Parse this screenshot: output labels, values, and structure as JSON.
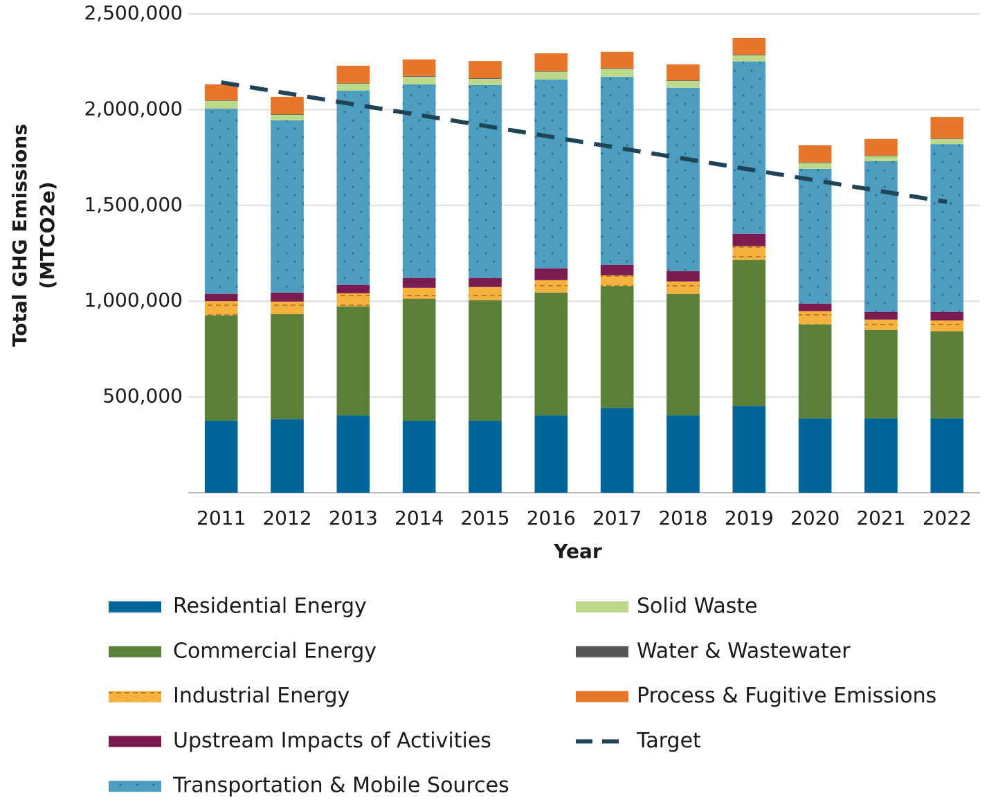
{
  "chart_data": {
    "type": "bar",
    "stacked": true,
    "y_label": [
      "Total GHG Emissions",
      "(MTCO2e)"
    ],
    "x_label": "Year",
    "categories": [
      "2011",
      "2012",
      "2013",
      "2014",
      "2015",
      "2016",
      "2017",
      "2018",
      "2019",
      "2020",
      "2021",
      "2022"
    ],
    "ylim": [
      0,
      2500000
    ],
    "yticks": [
      {
        "value": 500000,
        "label": "500,000"
      },
      {
        "value": 1000000,
        "label": "1,000,000"
      },
      {
        "value": 1500000,
        "label": "1,500,000"
      },
      {
        "value": 2000000,
        "label": "2,000,000"
      },
      {
        "value": 2500000,
        "label": "2,500,000"
      }
    ],
    "grid": true,
    "series": [
      {
        "name": "Residential Energy",
        "color": "#00669a",
        "values": [
          377000,
          384000,
          403000,
          377000,
          377000,
          403000,
          442000,
          403000,
          453000,
          388000,
          388000,
          388000
        ]
      },
      {
        "name": "Commercial Energy",
        "color": "#5b803a",
        "values": [
          549000,
          549000,
          570000,
          636000,
          628000,
          642000,
          636000,
          635000,
          762000,
          491000,
          462000,
          455000
        ]
      },
      {
        "name": "Industrial Energy",
        "color": "#f5b13d",
        "pattern": "dashes",
        "values": [
          74000,
          65000,
          68000,
          57000,
          69000,
          65000,
          57000,
          65000,
          72000,
          69000,
          54000,
          56000
        ]
      },
      {
        "name": "Upstream Impacts of Activities",
        "color": "#7b1b4f",
        "values": [
          38000,
          47000,
          44000,
          51000,
          47000,
          61000,
          54000,
          54000,
          65000,
          39000,
          40000,
          45000
        ]
      },
      {
        "name": "Transportation & Mobile Sources",
        "color": "#4c9dc0",
        "pattern": "dots",
        "values": [
          967000,
          899000,
          1014000,
          1011000,
          1007000,
          986000,
          982000,
          957000,
          899000,
          704000,
          787000,
          876000
        ]
      },
      {
        "name": "Solid Waste",
        "color": "#bcd88a",
        "values": [
          41000,
          29000,
          37000,
          40000,
          33000,
          41000,
          41000,
          36000,
          33000,
          30000,
          26000,
          27000
        ]
      },
      {
        "name": "Water & Wastewater",
        "color": "#555555",
        "values": [
          3000,
          3000,
          3000,
          3000,
          3000,
          3000,
          3000,
          3000,
          3000,
          3000,
          3000,
          3000
        ]
      },
      {
        "name": "Process & Fugitive Emissions",
        "color": "#e6772a",
        "values": [
          83000,
          91000,
          90000,
          87000,
          90000,
          93000,
          87000,
          83000,
          87000,
          90000,
          87000,
          112000
        ]
      },
      {
        "name": "Target",
        "type": "line",
        "style": "dashed",
        "color": "#1e4456",
        "values": [
          2142000,
          2085000,
          2028000,
          1972000,
          1915000,
          1858000,
          1801000,
          1745000,
          1688000,
          1631000,
          1574000,
          1518000
        ]
      }
    ]
  }
}
